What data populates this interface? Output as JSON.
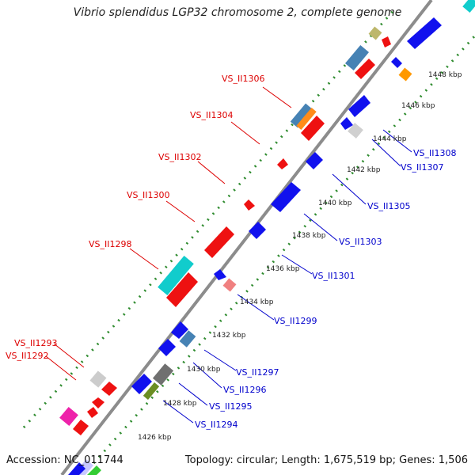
{
  "title": "Vibrio splendidus LGP32 chromosome 2, complete genome",
  "accession": "Accession: NC_011744",
  "summary": "Topology: circular; Length: 1,675,519 bp; Genes: 1,506",
  "colors": {
    "backbone": "#808080",
    "dots": "#2e8b2e",
    "forward_label": "#dd0000",
    "reverse_label": "#0000cc",
    "leader_forward": "#dd0000",
    "leader_reverse": "#0000cc"
  },
  "ticks": [
    "1426 kbp",
    "1428 kbp",
    "1430 kbp",
    "1432 kbp",
    "1434 kbp",
    "1436 kbp",
    "1438 kbp",
    "1440 kbp",
    "1442 kbp",
    "1444 kbp",
    "1446 kbp",
    "1448 kbp"
  ],
  "labels_forward": [
    "VS_II1306",
    "VS_II1304",
    "VS_II1302",
    "VS_II1300",
    "VS_II1298",
    "VS_II1293",
    "VS_II1292"
  ],
  "labels_reverse": [
    "VS_II1308",
    "VS_II1307",
    "VS_II1305",
    "VS_II1303",
    "VS_II1301",
    "VS_II1299",
    "VS_II1297",
    "VS_II1296",
    "VS_II1295",
    "VS_II1294"
  ]
}
